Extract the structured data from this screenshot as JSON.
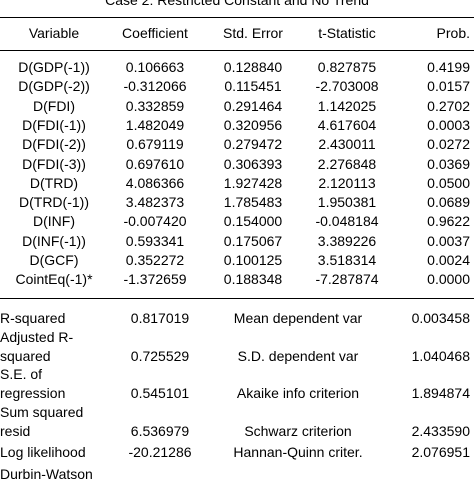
{
  "caption": "Case 2: Restricted Constant and No Trend",
  "headers": [
    "Variable",
    "Coefficient",
    "Std. Error",
    "t-Statistic",
    "Prob."
  ],
  "rows": [
    [
      "D(GDP(-1))",
      "0.106663",
      "0.128840",
      "0.827875",
      "0.4199"
    ],
    [
      "D(GDP(-2))",
      "-0.312066",
      "0.115451",
      "-2.703008",
      "0.0157"
    ],
    [
      "D(FDI)",
      "0.332859",
      "0.291464",
      "1.142025",
      "0.2702"
    ],
    [
      "D(FDI(-1))",
      "1.482049",
      "0.320956",
      "4.617604",
      "0.0003"
    ],
    [
      "D(FDI(-2))",
      "0.679119",
      "0.279472",
      "2.430011",
      "0.0272"
    ],
    [
      "D(FDI(-3))",
      "0.697610",
      "0.306393",
      "2.276848",
      "0.0369"
    ],
    [
      "D(TRD)",
      "4.086366",
      "1.927428",
      "2.120113",
      "0.0500"
    ],
    [
      "D(TRD(-1))",
      "3.482373",
      "1.785483",
      "1.950381",
      "0.0689"
    ],
    [
      "D(INF)",
      "-0.007420",
      "0.154000",
      "-0.048184",
      "0.9622"
    ],
    [
      "D(INF(-1))",
      "0.593341",
      "0.175067",
      "3.389226",
      "0.0037"
    ],
    [
      "D(GCF)",
      "0.352272",
      "0.100125",
      "3.518314",
      "0.0024"
    ],
    [
      "CointEq(-1)*",
      "-1.372659",
      "0.188348",
      "-7.287874",
      "0.0000"
    ]
  ],
  "stats": [
    {
      "label_lines": [
        "R-squared"
      ],
      "value": "0.817019",
      "label2": "Mean dependent var",
      "value2": "0.003458"
    },
    {
      "label_lines": [
        "Adjusted R-",
        "squared"
      ],
      "value": "0.725529",
      "label2": "S.D. dependent var",
      "value2": "1.040468"
    },
    {
      "label_lines": [
        "S.E. of",
        "regression"
      ],
      "value": "0.545101",
      "label2": "Akaike info criterion",
      "value2": "1.894874"
    },
    {
      "label_lines": [
        "Sum squared",
        "resid"
      ],
      "value": "6.536979",
      "label2": "Schwarz criterion",
      "value2": "2.433590"
    },
    {
      "label_lines": [
        "Log likelihood"
      ],
      "value": "-20.21286",
      "label2": "Hannan-Quinn criter.",
      "value2": "2.076951"
    },
    {
      "label_lines": [
        "Durbin-Watson"
      ],
      "value": "",
      "label2": "",
      "value2": ""
    }
  ]
}
